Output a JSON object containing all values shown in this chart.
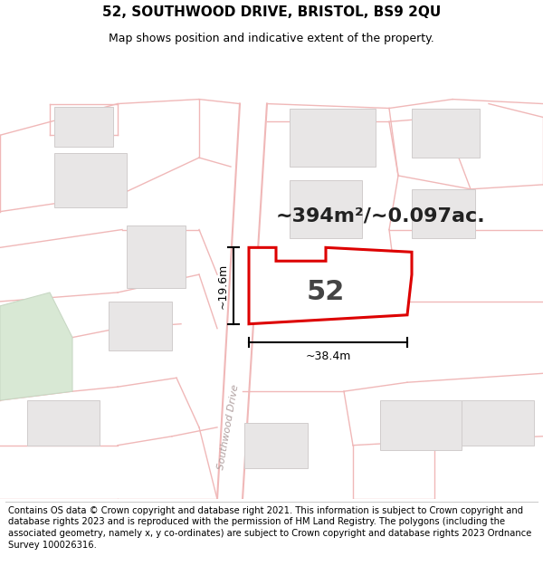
{
  "title_line1": "52, SOUTHWOOD DRIVE, BRISTOL, BS9 2QU",
  "title_line2": "Map shows position and indicative extent of the property.",
  "footer_text": "Contains OS data © Crown copyright and database right 2021. This information is subject to Crown copyright and database rights 2023 and is reproduced with the permission of HM Land Registry. The polygons (including the associated geometry, namely x, y co-ordinates) are subject to Crown copyright and database rights 2023 Ordnance Survey 100026316.",
  "area_text": "~394m²/~0.097ac.",
  "property_number": "52",
  "dim_width": "~38.4m",
  "dim_height": "~19.6m",
  "road_label": "Southwood Drive",
  "map_bg": "#f7f4f4",
  "property_fill": "#ffffff",
  "property_edge": "#dd0000",
  "road_line_color": "#f0b8b8",
  "building_fill": "#e8e6e6",
  "building_edge": "#d0cccc",
  "green_fill": "#d8e8d4",
  "green_edge": "#c8d8c4",
  "title_fontsize": 11,
  "subtitle_fontsize": 9,
  "footer_fontsize": 7.2,
  "area_fontsize": 16,
  "num_fontsize": 22,
  "road_label_fontsize": 8,
  "dim_fontsize": 9
}
